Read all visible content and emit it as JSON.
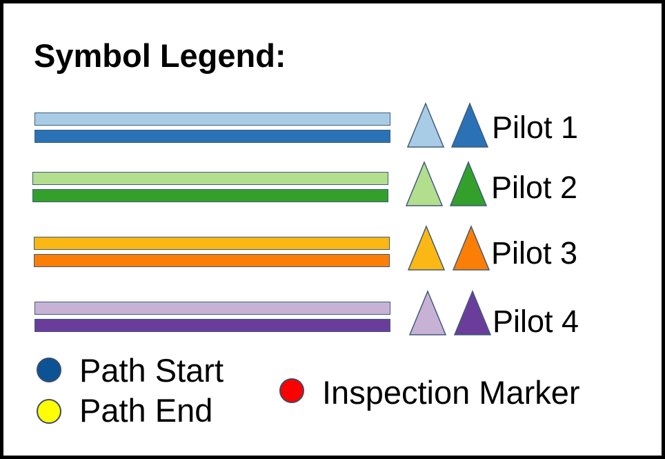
{
  "legend": {
    "title": "Symbol Legend:",
    "pilots": [
      {
        "label": "Pilot 1",
        "light_color": "#a9cce6",
        "dark_color": "#2a72b5"
      },
      {
        "label": "Pilot 2",
        "light_color": "#b2de8e",
        "dark_color": "#33a02c"
      },
      {
        "label": "Pilot 3",
        "light_color": "#fbb714",
        "dark_color": "#fb7f06"
      },
      {
        "label": "Pilot 4",
        "light_color": "#c7b2d6",
        "dark_color": "#6a3d9a"
      }
    ],
    "markers": [
      {
        "label": "Path Start",
        "color": "#0b5394"
      },
      {
        "label": "Path End",
        "color": "#ffff00"
      },
      {
        "label": "Inspection Marker",
        "color": "#ff0000"
      }
    ]
  }
}
